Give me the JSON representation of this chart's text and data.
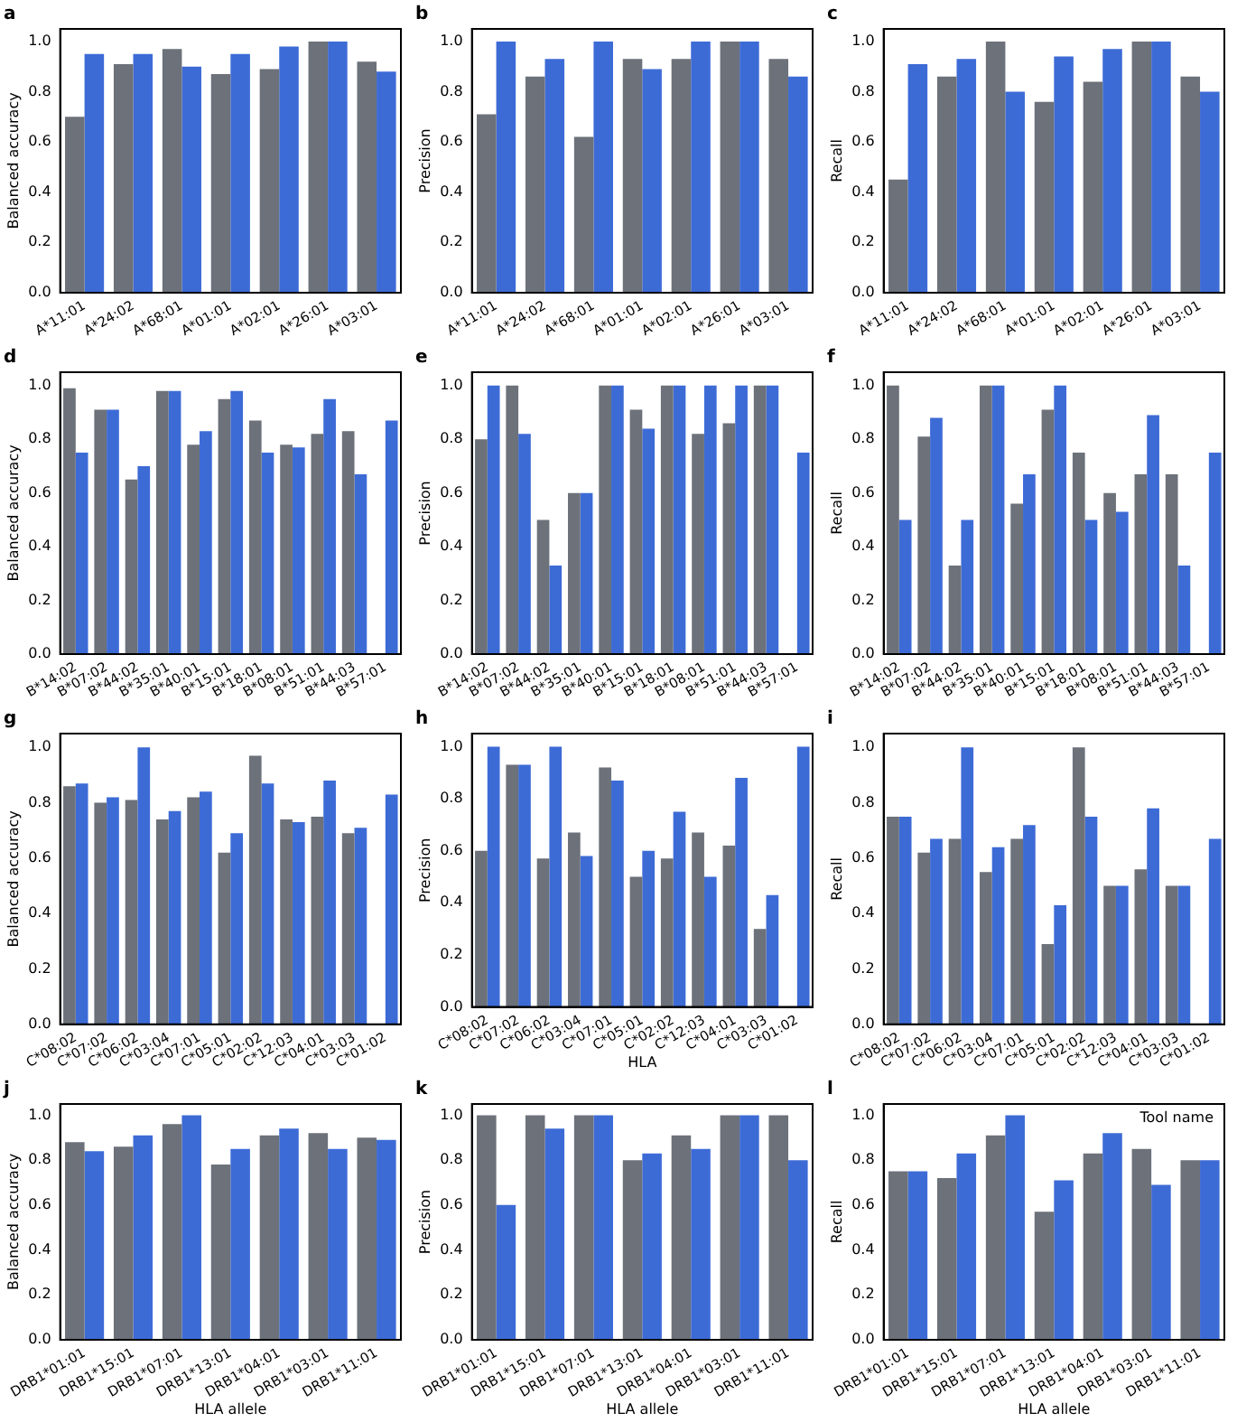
{
  "chart_data": [
    {
      "type": "bar",
      "title": "a",
      "ylabel": "Balanced accuracy",
      "categories": [
        "A*11:01",
        "A*24:02",
        "A*68:01",
        "A*01:01",
        "A*02:01",
        "A*26:01",
        "A*03:01"
      ],
      "series": [
        {
          "color": "#6c717a",
          "values": [
            0.7,
            0.91,
            0.97,
            0.87,
            0.89,
            1.0,
            0.92
          ]
        },
        {
          "color": "#3d6bd6",
          "values": [
            0.95,
            0.95,
            0.9,
            0.95,
            0.98,
            1.0,
            0.88
          ]
        }
      ],
      "ylim": [
        0,
        1.05
      ],
      "yticks": [
        {
          "value": 0,
          "label": "0.0"
        },
        {
          "value": 0.2,
          "label": "0.2"
        },
        {
          "value": 0.4,
          "label": "0.4"
        },
        {
          "value": 0.6,
          "label": "0.6"
        },
        {
          "value": 0.8,
          "label": "0.8"
        },
        {
          "value": 1,
          "label": "1.0"
        }
      ],
      "grid": false
    },
    {
      "type": "bar",
      "title": "b",
      "ylabel": "Precision",
      "categories": [
        "A*11:01",
        "A*24:02",
        "A*68:01",
        "A*01:01",
        "A*02:01",
        "A*26:01",
        "A*03:01"
      ],
      "series": [
        {
          "color": "#6c717a",
          "values": [
            0.71,
            0.86,
            0.62,
            0.93,
            0.93,
            1.0,
            0.93
          ]
        },
        {
          "color": "#3d6bd6",
          "values": [
            1.0,
            0.93,
            1.0,
            0.89,
            1.0,
            1.0,
            0.86
          ]
        }
      ],
      "ylim": [
        0,
        1.05
      ],
      "yticks": [
        {
          "value": 0,
          "label": "0.0"
        },
        {
          "value": 0.2,
          "label": "0.2"
        },
        {
          "value": 0.4,
          "label": "0.4"
        },
        {
          "value": 0.6,
          "label": "0.6"
        },
        {
          "value": 0.8,
          "label": "0.8"
        },
        {
          "value": 1,
          "label": "1.0"
        }
      ],
      "grid": false
    },
    {
      "type": "bar",
      "title": "c",
      "ylabel": "Recall",
      "categories": [
        "A*11:01",
        "A*24:02",
        "A*68:01",
        "A*01:01",
        "A*02:01",
        "A*26:01",
        "A*03:01"
      ],
      "series": [
        {
          "color": "#6c717a",
          "values": [
            0.45,
            0.86,
            1.0,
            0.76,
            0.84,
            1.0,
            0.86
          ]
        },
        {
          "color": "#3d6bd6",
          "values": [
            0.91,
            0.93,
            0.8,
            0.94,
            0.97,
            1.0,
            0.8
          ]
        }
      ],
      "ylim": [
        0,
        1.05
      ],
      "yticks": [
        {
          "value": 0,
          "label": "0.0"
        },
        {
          "value": 0.2,
          "label": "0.2"
        },
        {
          "value": 0.4,
          "label": "0.4"
        },
        {
          "value": 0.6,
          "label": "0.6"
        },
        {
          "value": 0.8,
          "label": "0.8"
        },
        {
          "value": 1,
          "label": "1.0"
        }
      ],
      "grid": false
    },
    {
      "type": "bar",
      "title": "d",
      "ylabel": "Balanced accuracy",
      "categories": [
        "B*14:02",
        "B*07:02",
        "B*44:02",
        "B*35:01",
        "B*40:01",
        "B*15:01",
        "B*18:01",
        "B*08:01",
        "B*51:01",
        "B*44:03",
        "B*57:01"
      ],
      "series": [
        {
          "color": "#6c717a",
          "values": [
            0.99,
            0.91,
            0.65,
            0.98,
            0.78,
            0.95,
            0.87,
            0.78,
            0.82,
            0.83,
            null
          ]
        },
        {
          "color": "#3d6bd6",
          "values": [
            0.75,
            0.91,
            0.7,
            0.98,
            0.83,
            0.98,
            0.75,
            0.77,
            0.95,
            0.67,
            0.87
          ]
        }
      ],
      "ylim": [
        0,
        1.05
      ],
      "yticks": [
        {
          "value": 0,
          "label": "0.0"
        },
        {
          "value": 0.2,
          "label": "0.2"
        },
        {
          "value": 0.4,
          "label": "0.4"
        },
        {
          "value": 0.6,
          "label": "0.6"
        },
        {
          "value": 0.8,
          "label": "0.8"
        },
        {
          "value": 1,
          "label": "1.0"
        }
      ],
      "grid": false
    },
    {
      "type": "bar",
      "title": "e",
      "ylabel": "Precision",
      "categories": [
        "B*14:02",
        "B*07:02",
        "B*44:02",
        "B*35:01",
        "B*40:01",
        "B*15:01",
        "B*18:01",
        "B*08:01",
        "B*51:01",
        "B*44:03",
        "B*57:01"
      ],
      "series": [
        {
          "color": "#6c717a",
          "values": [
            0.8,
            1.0,
            0.5,
            0.6,
            1.0,
            0.91,
            1.0,
            0.82,
            0.86,
            1.0,
            null
          ]
        },
        {
          "color": "#3d6bd6",
          "values": [
            1.0,
            0.82,
            0.33,
            0.6,
            1.0,
            0.84,
            1.0,
            1.0,
            1.0,
            1.0,
            0.75
          ]
        }
      ],
      "ylim": [
        0,
        1.05
      ],
      "yticks": [
        {
          "value": 0,
          "label": "0.0"
        },
        {
          "value": 0.2,
          "label": "0.2"
        },
        {
          "value": 0.4,
          "label": "0.4"
        },
        {
          "value": 0.6,
          "label": "0.6"
        },
        {
          "value": 0.8,
          "label": "0.8"
        },
        {
          "value": 1,
          "label": "1.0"
        }
      ],
      "grid": false
    },
    {
      "type": "bar",
      "title": "f",
      "ylabel": "Recall",
      "categories": [
        "B*14:02",
        "B*07:02",
        "B*44:02",
        "B*35:01",
        "B*40:01",
        "B*15:01",
        "B*18:01",
        "B*08:01",
        "B*51:01",
        "B*44:03",
        "B*57:01"
      ],
      "series": [
        {
          "color": "#6c717a",
          "values": [
            1.0,
            0.81,
            0.33,
            1.0,
            0.56,
            0.91,
            0.75,
            0.6,
            0.67,
            0.67,
            null
          ]
        },
        {
          "color": "#3d6bd6",
          "values": [
            0.5,
            0.88,
            0.5,
            1.0,
            0.67,
            1.0,
            0.5,
            0.53,
            0.89,
            0.33,
            0.75
          ]
        }
      ],
      "ylim": [
        0,
        1.05
      ],
      "yticks": [
        {
          "value": 0,
          "label": "0.0"
        },
        {
          "value": 0.2,
          "label": "0.2"
        },
        {
          "value": 0.4,
          "label": "0.4"
        },
        {
          "value": 0.6,
          "label": "0.6"
        },
        {
          "value": 0.8,
          "label": "0.8"
        },
        {
          "value": 1,
          "label": "1.0"
        }
      ],
      "grid": false
    },
    {
      "type": "bar",
      "title": "g",
      "ylabel": "Balanced accuracy",
      "categories": [
        "C*08:02",
        "C*07:02",
        "C*06:02",
        "C*03:04",
        "C*07:01",
        "C*05:01",
        "C*02:02",
        "C*12:03",
        "C*04:01",
        "C*03:03",
        "C*01:02"
      ],
      "series": [
        {
          "color": "#6c717a",
          "values": [
            0.86,
            0.8,
            0.81,
            0.74,
            0.82,
            0.62,
            0.97,
            0.74,
            0.75,
            0.69,
            null
          ]
        },
        {
          "color": "#3d6bd6",
          "values": [
            0.87,
            0.82,
            1.0,
            0.77,
            0.84,
            0.69,
            0.87,
            0.73,
            0.88,
            0.71,
            0.83
          ]
        }
      ],
      "ylim": [
        0,
        1.05
      ],
      "yticks": [
        {
          "value": 0,
          "label": "0.0"
        },
        {
          "value": 0.2,
          "label": "0.2"
        },
        {
          "value": 0.4,
          "label": "0.4"
        },
        {
          "value": 0.6,
          "label": "0.6"
        },
        {
          "value": 0.8,
          "label": "0.8"
        },
        {
          "value": 1,
          "label": "1.0"
        }
      ],
      "grid": false
    },
    {
      "type": "bar",
      "title": "h",
      "ylabel": "Precision",
      "xlabel": "HLA",
      "categories": [
        "C*08:02",
        "C*07:02",
        "C*06:02",
        "C*03:04",
        "C*07:01",
        "C*05:01",
        "C*02:02",
        "C*12:03",
        "C*04:01",
        "C*03:03",
        "C*01:02"
      ],
      "series": [
        {
          "color": "#6c717a",
          "values": [
            0.6,
            0.93,
            0.57,
            0.67,
            0.92,
            0.5,
            0.57,
            0.67,
            0.62,
            0.3,
            null
          ]
        },
        {
          "color": "#3d6bd6",
          "values": [
            1.0,
            0.93,
            1.0,
            0.58,
            0.87,
            0.6,
            0.75,
            0.5,
            0.88,
            0.43,
            1.0
          ]
        }
      ],
      "ylim": [
        0,
        1.05
      ],
      "yticks": [
        {
          "value": 0,
          "label": "0.0"
        },
        {
          "value": 0.2,
          "label": "0.2"
        },
        {
          "value": 0.4,
          "label": "0.4"
        },
        {
          "value": 0.6,
          "label": "0.6"
        },
        {
          "value": 0.8,
          "label": "0.8"
        },
        {
          "value": 1,
          "label": "1.0"
        }
      ],
      "grid": false
    },
    {
      "type": "bar",
      "title": "i",
      "ylabel": "Recall",
      "categories": [
        "C*08:02",
        "C*07:02",
        "C*06:02",
        "C*03:04",
        "C*07:01",
        "C*05:01",
        "C*02:02",
        "C*12:03",
        "C*04:01",
        "C*03:03",
        "C*01:02"
      ],
      "series": [
        {
          "color": "#6c717a",
          "values": [
            0.75,
            0.62,
            0.67,
            0.55,
            0.67,
            0.29,
            1.0,
            0.5,
            0.56,
            0.5,
            null
          ]
        },
        {
          "color": "#3d6bd6",
          "values": [
            0.75,
            0.67,
            1.0,
            0.64,
            0.72,
            0.43,
            0.75,
            0.5,
            0.78,
            0.5,
            0.67
          ]
        }
      ],
      "ylim": [
        0,
        1.05
      ],
      "yticks": [
        {
          "value": 0,
          "label": "0.0"
        },
        {
          "value": 0.2,
          "label": "0.2"
        },
        {
          "value": 0.4,
          "label": "0.4"
        },
        {
          "value": 0.6,
          "label": "0.6"
        },
        {
          "value": 0.8,
          "label": "0.8"
        },
        {
          "value": 1,
          "label": "1.0"
        }
      ],
      "grid": false
    },
    {
      "type": "bar",
      "title": "j",
      "ylabel": "Balanced accuracy",
      "xlabel": "HLA allele",
      "categories": [
        "DRB1*01:01",
        "DRB1*15:01",
        "DRB1*07:01",
        "DRB1*13:01",
        "DRB1*04:01",
        "DRB1*03:01",
        "DRB1*11:01"
      ],
      "series": [
        {
          "color": "#6c717a",
          "values": [
            0.88,
            0.86,
            0.96,
            0.78,
            0.91,
            0.92,
            0.9
          ]
        },
        {
          "color": "#3d6bd6",
          "values": [
            0.84,
            0.91,
            1.0,
            0.85,
            0.94,
            0.85,
            0.89
          ]
        }
      ],
      "ylim": [
        0,
        1.05
      ],
      "yticks": [
        {
          "value": 0,
          "label": "0.0"
        },
        {
          "value": 0.2,
          "label": "0.2"
        },
        {
          "value": 0.4,
          "label": "0.4"
        },
        {
          "value": 0.6,
          "label": "0.6"
        },
        {
          "value": 0.8,
          "label": "0.8"
        },
        {
          "value": 1,
          "label": "1.0"
        }
      ],
      "grid": false
    },
    {
      "type": "bar",
      "title": "k",
      "ylabel": "Precision",
      "xlabel": "HLA allele",
      "categories": [
        "DRB1*01:01",
        "DRB1*15:01",
        "DRB1*07:01",
        "DRB1*13:01",
        "DRB1*04:01",
        "DRB1*03:01",
        "DRB1*11:01"
      ],
      "series": [
        {
          "color": "#6c717a",
          "values": [
            1.0,
            1.0,
            1.0,
            0.8,
            0.91,
            1.0,
            1.0
          ]
        },
        {
          "color": "#3d6bd6",
          "values": [
            0.6,
            0.94,
            1.0,
            0.83,
            0.85,
            1.0,
            0.8
          ]
        }
      ],
      "ylim": [
        0,
        1.05
      ],
      "yticks": [
        {
          "value": 0,
          "label": "0.0"
        },
        {
          "value": 0.2,
          "label": "0.2"
        },
        {
          "value": 0.4,
          "label": "0.4"
        },
        {
          "value": 0.6,
          "label": "0.6"
        },
        {
          "value": 0.8,
          "label": "0.8"
        },
        {
          "value": 1,
          "label": "1.0"
        }
      ],
      "grid": false
    },
    {
      "type": "bar",
      "title": "l",
      "ylabel": "Recall",
      "xlabel": "HLA allele",
      "annotations": [
        "Tool name"
      ],
      "categories": [
        "DRB1*01:01",
        "DRB1*15:01",
        "DRB1*07:01",
        "DRB1*13:01",
        "DRB1*04:01",
        "DRB1*03:01",
        "DRB1*11:01"
      ],
      "series": [
        {
          "color": "#6c717a",
          "values": [
            0.75,
            0.72,
            0.91,
            0.57,
            0.83,
            0.85,
            0.8
          ]
        },
        {
          "color": "#3d6bd6",
          "values": [
            0.75,
            0.83,
            1.0,
            0.71,
            0.92,
            0.69,
            0.8
          ]
        }
      ],
      "ylim": [
        0,
        1.05
      ],
      "yticks": [
        {
          "value": 0,
          "label": "0.0"
        },
        {
          "value": 0.2,
          "label": "0.2"
        },
        {
          "value": 0.4,
          "label": "0.4"
        },
        {
          "value": 0.6,
          "label": "0.6"
        },
        {
          "value": 0.8,
          "label": "0.8"
        },
        {
          "value": 1,
          "label": "1.0"
        }
      ],
      "grid": false
    }
  ]
}
